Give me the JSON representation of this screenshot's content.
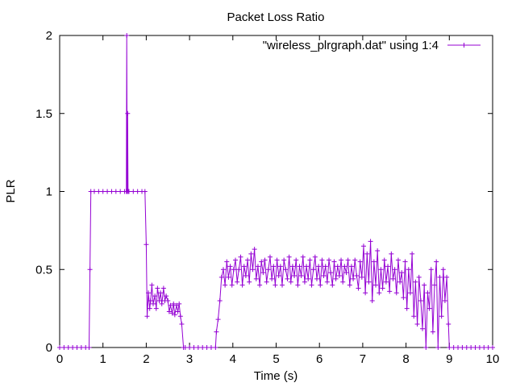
{
  "chart_data": {
    "type": "line",
    "title": "Packet Loss Ratio",
    "xlabel": "Time (s)",
    "ylabel": "PLR",
    "xlim": [
      0,
      10
    ],
    "ylim": [
      0,
      2
    ],
    "xticks": [
      {
        "value": 0,
        "label": "0"
      },
      {
        "value": 1,
        "label": "1"
      },
      {
        "value": 2,
        "label": "2"
      },
      {
        "value": 3,
        "label": "3"
      },
      {
        "value": 4,
        "label": "4"
      },
      {
        "value": 5,
        "label": "5"
      },
      {
        "value": 6,
        "label": "6"
      },
      {
        "value": 7,
        "label": "7"
      },
      {
        "value": 8,
        "label": "8"
      },
      {
        "value": 9,
        "label": "9"
      },
      {
        "value": 10,
        "label": "10"
      }
    ],
    "yticks": [
      {
        "value": 0,
        "label": "0"
      },
      {
        "value": 0.5,
        "label": "0.5"
      },
      {
        "value": 1,
        "label": "1"
      },
      {
        "value": 1.5,
        "label": "1.5"
      },
      {
        "value": 2,
        "label": "2"
      }
    ],
    "grid": false,
    "legend_position": "top-right",
    "series": [
      {
        "name": "\"wireless_plrgraph.dat\" using 1:4",
        "color": "#9400d3",
        "marker": "plus",
        "points": [
          [
            0.0,
            0
          ],
          [
            0.1,
            0
          ],
          [
            0.2,
            0
          ],
          [
            0.3,
            0
          ],
          [
            0.4,
            0
          ],
          [
            0.5,
            0
          ],
          [
            0.6,
            0
          ],
          [
            0.68,
            0
          ],
          [
            0.7,
            0.5
          ],
          [
            0.72,
            1.0
          ],
          [
            0.8,
            1.0
          ],
          [
            0.9,
            1.0
          ],
          [
            1.0,
            1.0
          ],
          [
            1.1,
            1.0
          ],
          [
            1.2,
            1.0
          ],
          [
            1.3,
            1.0
          ],
          [
            1.4,
            1.0
          ],
          [
            1.5,
            1.0
          ],
          [
            1.54,
            1.0
          ],
          [
            1.55,
            2.0
          ],
          [
            1.56,
            1.0
          ],
          [
            1.57,
            1.5
          ],
          [
            1.58,
            1.0
          ],
          [
            1.6,
            1.0
          ],
          [
            1.7,
            1.0
          ],
          [
            1.8,
            1.0
          ],
          [
            1.9,
            1.0
          ],
          [
            1.97,
            1.0
          ],
          [
            2.0,
            0.66
          ],
          [
            2.02,
            0.2
          ],
          [
            2.05,
            0.35
          ],
          [
            2.08,
            0.25
          ],
          [
            2.1,
            0.3
          ],
          [
            2.13,
            0.4
          ],
          [
            2.16,
            0.28
          ],
          [
            2.2,
            0.33
          ],
          [
            2.23,
            0.25
          ],
          [
            2.26,
            0.38
          ],
          [
            2.3,
            0.3
          ],
          [
            2.33,
            0.35
          ],
          [
            2.36,
            0.28
          ],
          [
            2.4,
            0.38
          ],
          [
            2.43,
            0.3
          ],
          [
            2.46,
            0.33
          ],
          [
            2.5,
            0.3
          ],
          [
            2.53,
            0.23
          ],
          [
            2.56,
            0.27
          ],
          [
            2.6,
            0.22
          ],
          [
            2.63,
            0.28
          ],
          [
            2.66,
            0.21
          ],
          [
            2.7,
            0.27
          ],
          [
            2.73,
            0.23
          ],
          [
            2.76,
            0.28
          ],
          [
            2.79,
            0.2
          ],
          [
            2.82,
            0.15
          ],
          [
            2.86,
            0.0
          ],
          [
            2.9,
            0
          ],
          [
            3.0,
            0
          ],
          [
            3.1,
            0
          ],
          [
            3.2,
            0
          ],
          [
            3.3,
            0
          ],
          [
            3.4,
            0
          ],
          [
            3.5,
            0
          ],
          [
            3.6,
            0
          ],
          [
            3.62,
            0.1
          ],
          [
            3.66,
            0.18
          ],
          [
            3.7,
            0.3
          ],
          [
            3.74,
            0.45
          ],
          [
            3.78,
            0.5
          ],
          [
            3.82,
            0.4
          ],
          [
            3.86,
            0.55
          ],
          [
            3.9,
            0.45
          ],
          [
            3.94,
            0.52
          ],
          [
            3.98,
            0.4
          ],
          [
            4.02,
            0.5
          ],
          [
            4.06,
            0.56
          ],
          [
            4.1,
            0.42
          ],
          [
            4.14,
            0.5
          ],
          [
            4.18,
            0.58
          ],
          [
            4.22,
            0.4
          ],
          [
            4.26,
            0.52
          ],
          [
            4.3,
            0.46
          ],
          [
            4.34,
            0.56
          ],
          [
            4.38,
            0.42
          ],
          [
            4.42,
            0.6
          ],
          [
            4.46,
            0.5
          ],
          [
            4.5,
            0.63
          ],
          [
            4.54,
            0.44
          ],
          [
            4.58,
            0.52
          ],
          [
            4.62,
            0.4
          ],
          [
            4.66,
            0.55
          ],
          [
            4.7,
            0.48
          ],
          [
            4.74,
            0.56
          ],
          [
            4.78,
            0.42
          ],
          [
            4.82,
            0.5
          ],
          [
            4.86,
            0.58
          ],
          [
            4.9,
            0.44
          ],
          [
            4.94,
            0.52
          ],
          [
            4.98,
            0.4
          ],
          [
            5.02,
            0.56
          ],
          [
            5.06,
            0.46
          ],
          [
            5.1,
            0.52
          ],
          [
            5.14,
            0.4
          ],
          [
            5.18,
            0.56
          ],
          [
            5.22,
            0.5
          ],
          [
            5.26,
            0.44
          ],
          [
            5.3,
            0.58
          ],
          [
            5.34,
            0.42
          ],
          [
            5.38,
            0.52
          ],
          [
            5.42,
            0.46
          ],
          [
            5.46,
            0.56
          ],
          [
            5.5,
            0.4
          ],
          [
            5.54,
            0.52
          ],
          [
            5.58,
            0.46
          ],
          [
            5.62,
            0.58
          ],
          [
            5.66,
            0.42
          ],
          [
            5.7,
            0.52
          ],
          [
            5.74,
            0.44
          ],
          [
            5.78,
            0.56
          ],
          [
            5.82,
            0.4
          ],
          [
            5.86,
            0.5
          ],
          [
            5.9,
            0.58
          ],
          [
            5.94,
            0.44
          ],
          [
            5.98,
            0.52
          ],
          [
            6.02,
            0.4
          ],
          [
            6.06,
            0.56
          ],
          [
            6.1,
            0.46
          ],
          [
            6.14,
            0.52
          ],
          [
            6.18,
            0.42
          ],
          [
            6.22,
            0.56
          ],
          [
            6.26,
            0.48
          ],
          [
            6.3,
            0.4
          ],
          [
            6.34,
            0.55
          ],
          [
            6.38,
            0.44
          ],
          [
            6.42,
            0.52
          ],
          [
            6.46,
            0.46
          ],
          [
            6.5,
            0.56
          ],
          [
            6.54,
            0.42
          ],
          [
            6.58,
            0.52
          ],
          [
            6.62,
            0.48
          ],
          [
            6.66,
            0.56
          ],
          [
            6.7,
            0.4
          ],
          [
            6.74,
            0.52
          ],
          [
            6.78,
            0.44
          ],
          [
            6.82,
            0.56
          ],
          [
            6.86,
            0.46
          ],
          [
            6.9,
            0.38
          ],
          [
            6.94,
            0.55
          ],
          [
            6.98,
            0.45
          ],
          [
            7.02,
            0.65
          ],
          [
            7.06,
            0.35
          ],
          [
            7.1,
            0.6
          ],
          [
            7.14,
            0.42
          ],
          [
            7.18,
            0.68
          ],
          [
            7.22,
            0.3
          ],
          [
            7.26,
            0.55
          ],
          [
            7.3,
            0.4
          ],
          [
            7.34,
            0.62
          ],
          [
            7.38,
            0.35
          ],
          [
            7.42,
            0.5
          ],
          [
            7.46,
            0.38
          ],
          [
            7.5,
            0.56
          ],
          [
            7.54,
            0.42
          ],
          [
            7.58,
            0.52
          ],
          [
            7.62,
            0.36
          ],
          [
            7.66,
            0.6
          ],
          [
            7.7,
            0.44
          ],
          [
            7.74,
            0.5
          ],
          [
            7.78,
            0.35
          ],
          [
            7.82,
            0.56
          ],
          [
            7.86,
            0.42
          ],
          [
            7.9,
            0.48
          ],
          [
            7.94,
            0.32
          ],
          [
            7.98,
            0.55
          ],
          [
            8.02,
            0.25
          ],
          [
            8.06,
            0.5
          ],
          [
            8.1,
            0.35
          ],
          [
            8.14,
            0.6
          ],
          [
            8.18,
            0.2
          ],
          [
            8.22,
            0.42
          ],
          [
            8.26,
            0.15
          ],
          [
            8.3,
            0.45
          ],
          [
            8.34,
            0.3
          ],
          [
            8.38,
            0.12
          ],
          [
            8.42,
            0.4
          ],
          [
            8.46,
            0.0
          ],
          [
            8.5,
            0.35
          ],
          [
            8.54,
            0.25
          ],
          [
            8.58,
            0.5
          ],
          [
            8.62,
            0.1
          ],
          [
            8.66,
            0.4
          ],
          [
            8.7,
            0.55
          ],
          [
            8.74,
            0.0
          ],
          [
            8.78,
            0.45
          ],
          [
            8.82,
            0.2
          ],
          [
            8.86,
            0.5
          ],
          [
            8.9,
            0.3
          ],
          [
            8.94,
            0.45
          ],
          [
            8.98,
            0.15
          ],
          [
            9.0,
            0.0
          ],
          [
            9.1,
            0
          ],
          [
            9.2,
            0
          ],
          [
            9.3,
            0
          ],
          [
            9.4,
            0
          ],
          [
            9.5,
            0
          ],
          [
            9.6,
            0
          ],
          [
            9.7,
            0
          ],
          [
            9.8,
            0
          ],
          [
            9.9,
            0
          ],
          [
            10.0,
            0
          ]
        ]
      }
    ]
  }
}
